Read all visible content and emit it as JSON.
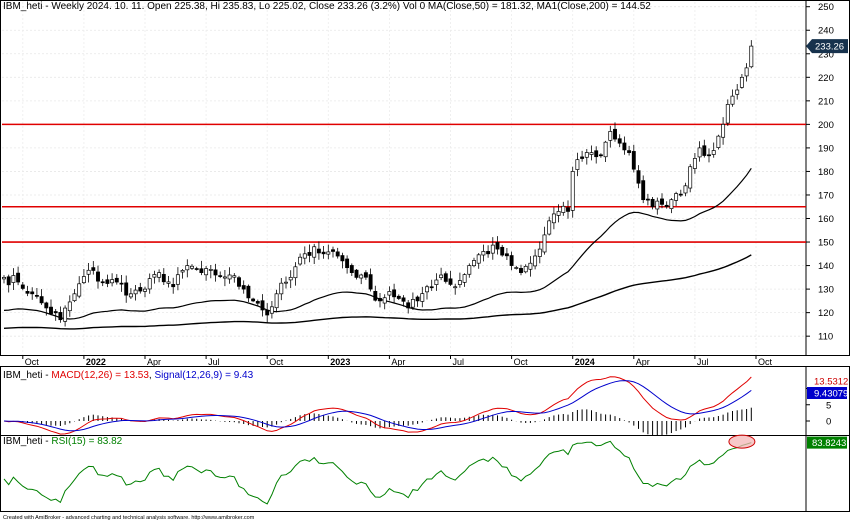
{
  "chart_data": [
    {
      "type": "candlestick",
      "title": "IBM_heti - Weekly 2024. 10. 11. Open 225.38, Hi 235.83, Lo 225.02, Close 233.26 (3.2%) Vol 0 MA(Close,50) = 181.32, MA1(Close,200) = 144.52",
      "title_parts": {
        "symbol": "IBM_heti - Weekly 2024. 10. 11. Open 225.38, Hi 235.83, Lo 225.02, Close 233.26 (3.2%) Vol 0 ",
        "ma50": "MA(Close,50) = 181.32",
        "sep": ", ",
        "ma200": "MA1(Close,200) = 144.52"
      },
      "ylim": [
        102,
        252
      ],
      "yticks": [
        110,
        120,
        130,
        140,
        150,
        160,
        170,
        180,
        190,
        200,
        210,
        220,
        230,
        240,
        250
      ],
      "ytick_labels": [
        "110",
        "120",
        "130",
        "140",
        "150",
        "160",
        "170",
        "180",
        "190",
        "200",
        "210",
        "220",
        "230",
        "240",
        "250"
      ],
      "x_labels": [
        {
          "label": "Oct",
          "week": 4,
          "bold": false
        },
        {
          "label": "2022",
          "week": 17,
          "bold": true
        },
        {
          "label": "Apr",
          "week": 30,
          "bold": false
        },
        {
          "label": "Jul",
          "week": 43,
          "bold": false
        },
        {
          "label": "Oct",
          "week": 56,
          "bold": false
        },
        {
          "label": "2023",
          "week": 69,
          "bold": true
        },
        {
          "label": "Apr",
          "week": 82,
          "bold": false
        },
        {
          "label": "Jul",
          "week": 95,
          "bold": false
        },
        {
          "label": "Oct",
          "week": 108,
          "bold": false
        },
        {
          "label": "2024",
          "week": 121,
          "bold": true
        },
        {
          "label": "Apr",
          "week": 134,
          "bold": false
        },
        {
          "label": "Jul",
          "week": 147,
          "bold": false
        },
        {
          "label": "Oct",
          "week": 160,
          "bold": false
        }
      ],
      "horizontal_lines": [
        {
          "value": 200,
          "color": "#e00000"
        },
        {
          "value": 165,
          "color": "#e00000"
        },
        {
          "value": 150,
          "color": "#e00000"
        }
      ],
      "last_price_label": "233.26",
      "close_anchors": [
        [
          0,
          135
        ],
        [
          3,
          133
        ],
        [
          6,
          128
        ],
        [
          9,
          122
        ],
        [
          12,
          117
        ],
        [
          15,
          128
        ],
        [
          18,
          138
        ],
        [
          21,
          133
        ],
        [
          24,
          133
        ],
        [
          27,
          128
        ],
        [
          30,
          130
        ],
        [
          33,
          137
        ],
        [
          36,
          131
        ],
        [
          39,
          140
        ],
        [
          42,
          137
        ],
        [
          45,
          136
        ],
        [
          48,
          136
        ],
        [
          51,
          130
        ],
        [
          54,
          124
        ],
        [
          56,
          119
        ],
        [
          58,
          128
        ],
        [
          61,
          135
        ],
        [
          64,
          145
        ],
        [
          66,
          148
        ],
        [
          68,
          145
        ],
        [
          70,
          146
        ],
        [
          72,
          142
        ],
        [
          74,
          137
        ],
        [
          76,
          136
        ],
        [
          78,
          130
        ],
        [
          80,
          125
        ],
        [
          82,
          129
        ],
        [
          84,
          126
        ],
        [
          86,
          122
        ],
        [
          88,
          125
        ],
        [
          90,
          131
        ],
        [
          93,
          136
        ],
        [
          96,
          131
        ],
        [
          99,
          140
        ],
        [
          102,
          146
        ],
        [
          105,
          147
        ],
        [
          108,
          140
        ],
        [
          110,
          137
        ],
        [
          112,
          141
        ],
        [
          114,
          147
        ],
        [
          116,
          159
        ],
        [
          118,
          163
        ],
        [
          120,
          163
        ],
        [
          121,
          180
        ],
        [
          122,
          185
        ],
        [
          125,
          188
        ],
        [
          127,
          187
        ],
        [
          129,
          197
        ],
        [
          131,
          192
        ],
        [
          133,
          188
        ],
        [
          135,
          175
        ],
        [
          136,
          168
        ],
        [
          138,
          165
        ],
        [
          140,
          166
        ],
        [
          142,
          168
        ],
        [
          144,
          170
        ],
        [
          146,
          182
        ],
        [
          148,
          190
        ],
        [
          150,
          187
        ],
        [
          152,
          195
        ],
        [
          153,
          200
        ],
        [
          155,
          212
        ],
        [
          157,
          220
        ],
        [
          158,
          224
        ],
        [
          159,
          233.26
        ]
      ],
      "series": [
        {
          "name": "MA(Close,50) = 181.32",
          "color": "#000000",
          "last": 181.32
        },
        {
          "name": "MA1(Close,200) = 144.52",
          "color": "#000000",
          "last": 144.52
        }
      ]
    },
    {
      "type": "line",
      "title": "IBM_heti - MACD(12,26) = 13.53, Signal(12,26,9) = 9.43",
      "title_parts": {
        "prefix": "IBM_heti - ",
        "macd": "MACD(12,26) = 13.53",
        "sep": ", ",
        "signal": "Signal(12,26,9) = 9.43"
      },
      "yticks": [
        0,
        5,
        10
      ],
      "ytick_labels": [
        "0",
        "5",
        "10"
      ],
      "series": [
        {
          "name": "MACD(12,26) = 13.53",
          "color": "#e00000",
          "last": 13.53
        },
        {
          "name": "Signal(12,26,9) = 9.43",
          "color": "#0000cc",
          "last": 9.43
        }
      ],
      "flags": [
        {
          "text": "13.5312",
          "color": "#cc0000"
        },
        {
          "text": "9.43079",
          "color": "#0000cc"
        }
      ]
    },
    {
      "type": "line",
      "title": "IBM_heti - RSI(15) = 83.82",
      "title_parts": {
        "prefix": "IBM_heti - ",
        "rsi": "RSI(15) = 83.82"
      },
      "series": [
        {
          "name": "RSI(15) = 83.82",
          "color": "#008000",
          "last": 83.82
        }
      ],
      "flags": [
        {
          "text": "83.8243",
          "color": "#008000"
        }
      ]
    }
  ],
  "footer": "Created with AmiBroker - advanced charting and technical analysis software. http://www.amibroker.com",
  "colors": {
    "up_candle": "#ffffff",
    "down_candle": "#000000",
    "resistance": "#e00000",
    "macd": "#e00000",
    "signal": "#0000cc",
    "rsi": "#008000",
    "ellipse": "#cc0000"
  }
}
